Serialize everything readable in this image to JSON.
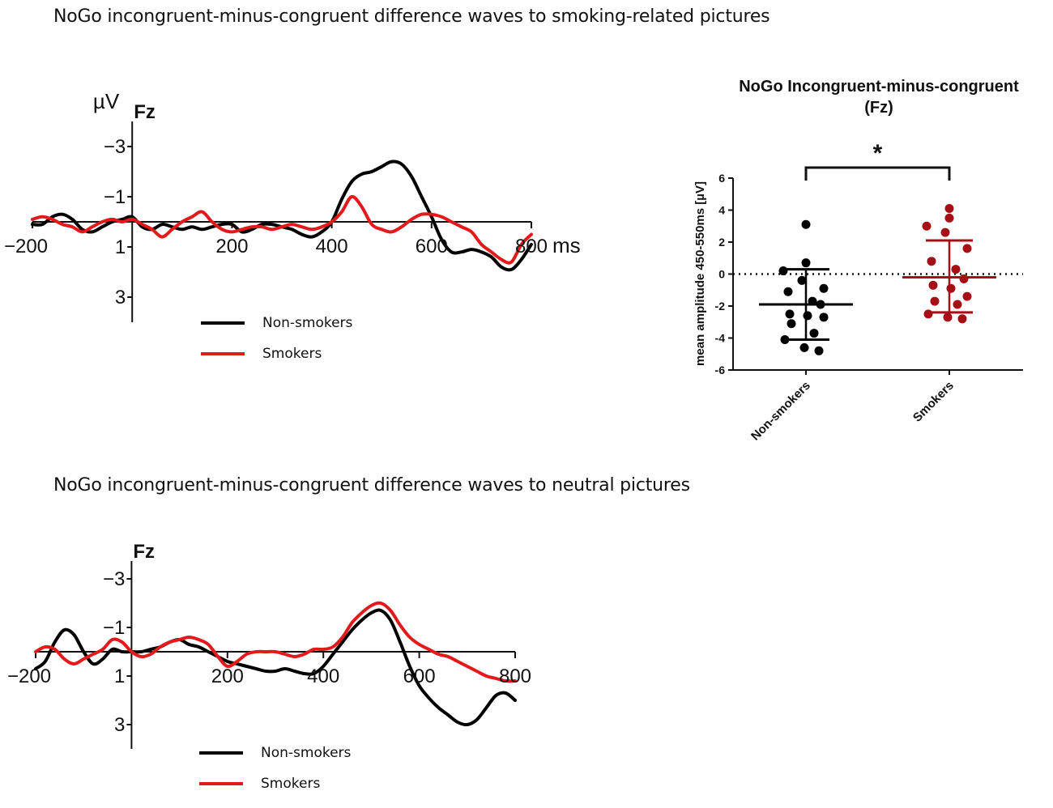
{
  "headings": {
    "top": "NoGo incongruent-minus-congruent difference waves to smoking-related pictures",
    "bottom": "NoGo incongruent-minus-congruent difference waves to neutral pictures"
  },
  "colors": {
    "nonsmokers": "#000000",
    "smokers": "#e31a1c",
    "smokers_scatter": "#a50f15"
  },
  "chart_data": [
    {
      "type": "line",
      "title": "Fz",
      "ylabel": "µV",
      "xlabel": "ms",
      "xlim": [
        -200,
        800
      ],
      "ylim": [
        -4,
        4
      ],
      "y_inverted": true,
      "x_ticks": [
        "−200",
        "200",
        "400",
        "600",
        "800"
      ],
      "y_ticks": [
        "−3",
        "−1",
        "1",
        "3"
      ],
      "legend": [
        "Non-smokers",
        "Smokers"
      ],
      "series": [
        {
          "name": "Non-smokers",
          "x": [
            -200,
            -180,
            -160,
            -140,
            -120,
            -100,
            -80,
            -60,
            -40,
            -20,
            0,
            20,
            40,
            60,
            80,
            100,
            120,
            140,
            160,
            180,
            200,
            220,
            240,
            260,
            280,
            300,
            320,
            340,
            360,
            380,
            400,
            420,
            440,
            460,
            480,
            500,
            520,
            540,
            560,
            580,
            600,
            620,
            640,
            660,
            680,
            700,
            720,
            740,
            760,
            780,
            800
          ],
          "y": [
            0.1,
            0.1,
            -0.2,
            -0.3,
            -0.1,
            0.3,
            0.4,
            0.2,
            0,
            -0.1,
            -0.2,
            0.2,
            0.3,
            0.1,
            0.2,
            0.3,
            0.2,
            0.3,
            0.2,
            0.1,
            0.1,
            0.4,
            0.3,
            0.1,
            0.1,
            0.2,
            0.3,
            0.5,
            0.6,
            0.4,
            0,
            -0.9,
            -1.6,
            -1.9,
            -2,
            -2.2,
            -2.4,
            -2.3,
            -1.8,
            -1,
            -0.2,
            0.7,
            1.2,
            1.2,
            1.1,
            1.2,
            1.4,
            1.8,
            1.9,
            1.5,
            0.9
          ]
        },
        {
          "name": "Smokers",
          "x": [
            -200,
            -180,
            -160,
            -140,
            -120,
            -100,
            -80,
            -60,
            -40,
            -20,
            0,
            20,
            40,
            60,
            80,
            100,
            120,
            140,
            160,
            180,
            200,
            220,
            240,
            260,
            280,
            300,
            320,
            340,
            360,
            380,
            400,
            420,
            440,
            460,
            480,
            500,
            520,
            540,
            560,
            580,
            600,
            620,
            640,
            660,
            680,
            700,
            720,
            740,
            760,
            780,
            800
          ],
          "y": [
            -0.1,
            -0.2,
            -0.1,
            0.1,
            0.2,
            0.4,
            0.2,
            0,
            -0.1,
            0,
            -0.1,
            0.1,
            0.3,
            0.6,
            0.3,
            0,
            -0.2,
            -0.4,
            0,
            0.3,
            0.4,
            0.3,
            0.2,
            0.2,
            0.3,
            0.2,
            0.1,
            0.2,
            0.3,
            0.2,
            0,
            -0.4,
            -1,
            -0.6,
            0.1,
            0.3,
            0.4,
            0.2,
            -0.1,
            -0.3,
            -0.3,
            -0.2,
            0,
            0.2,
            0.4,
            0.9,
            1.2,
            1.5,
            1.6,
            0.9,
            0.5
          ]
        }
      ]
    },
    {
      "type": "scatter",
      "title": "NoGo Incongruent-minus-congruent",
      "subtitle": "(Fz)",
      "ylabel": "mean amplitude 450-550ms [µV]",
      "ylim": [
        -6,
        6
      ],
      "y_ticks": [
        6,
        4,
        2,
        0,
        -2,
        -4,
        -6
      ],
      "categories": [
        "Non-smokers",
        "Smokers"
      ],
      "significance": "*",
      "groups": [
        {
          "name": "Non-smokers",
          "mean": -1.9,
          "sd_upper": 0.3,
          "sd_lower": -4.1,
          "points": [
            3.1,
            0.7,
            0.2,
            -0.4,
            -0.9,
            -1.1,
            -1.7,
            -1.9,
            -2.5,
            -2.6,
            -2.7,
            -3.1,
            -3.7,
            -4.1,
            -4.6,
            -4.8
          ]
        },
        {
          "name": "Smokers",
          "mean": -0.2,
          "sd_upper": 2.1,
          "sd_lower": -2.4,
          "points": [
            4.1,
            3.5,
            3.0,
            2.6,
            1.6,
            0.8,
            0.3,
            -0.3,
            -0.7,
            -0.9,
            -1.4,
            -1.7,
            -1.9,
            -2.5,
            -2.7,
            -2.8
          ]
        }
      ]
    },
    {
      "type": "line",
      "title": "Fz",
      "xlim": [
        -200,
        800
      ],
      "ylim": [
        -4,
        4
      ],
      "y_inverted": true,
      "x_ticks": [
        "−200",
        "200",
        "400",
        "600",
        "800"
      ],
      "y_ticks": [
        "−3",
        "−1",
        "1",
        "3"
      ],
      "legend": [
        "Non-smokers",
        "Smokers"
      ],
      "series": [
        {
          "name": "Non-smokers",
          "x": [
            -200,
            -180,
            -160,
            -140,
            -120,
            -100,
            -80,
            -60,
            -40,
            -20,
            0,
            20,
            40,
            60,
            80,
            100,
            120,
            140,
            160,
            180,
            200,
            220,
            240,
            260,
            280,
            300,
            320,
            340,
            360,
            380,
            400,
            420,
            440,
            460,
            480,
            500,
            520,
            540,
            560,
            580,
            600,
            620,
            640,
            660,
            680,
            700,
            720,
            740,
            760,
            780,
            800
          ],
          "y": [
            0.7,
            0.4,
            -0.4,
            -0.9,
            -0.7,
            0,
            0.5,
            0.3,
            -0.1,
            0,
            0,
            0,
            -0.1,
            -0.2,
            -0.4,
            -0.5,
            -0.3,
            -0.2,
            0,
            0.2,
            0.4,
            0.5,
            0.6,
            0.7,
            0.8,
            0.8,
            0.7,
            0.8,
            0.9,
            0.9,
            0.6,
            0.1,
            -0.4,
            -0.9,
            -1.3,
            -1.6,
            -1.7,
            -1.3,
            -0.4,
            0.6,
            1.4,
            1.9,
            2.3,
            2.6,
            2.9,
            3,
            2.8,
            2.3,
            1.8,
            1.7,
            2
          ]
        },
        {
          "name": "Smokers",
          "x": [
            -200,
            -180,
            -160,
            -140,
            -120,
            -100,
            -80,
            -60,
            -40,
            -20,
            0,
            20,
            40,
            60,
            80,
            100,
            120,
            140,
            160,
            180,
            200,
            220,
            240,
            260,
            280,
            300,
            320,
            340,
            360,
            380,
            400,
            420,
            440,
            460,
            480,
            500,
            520,
            540,
            560,
            580,
            600,
            620,
            640,
            660,
            680,
            700,
            720,
            740,
            760,
            780,
            800
          ],
          "y": [
            0,
            -0.2,
            -0.1,
            0.3,
            0.5,
            0.3,
            0.1,
            -0.1,
            -0.5,
            -0.4,
            0,
            0.2,
            0.1,
            -0.2,
            -0.4,
            -0.5,
            -0.6,
            -0.5,
            -0.3,
            0.2,
            0.6,
            0.4,
            0.1,
            0,
            0,
            0,
            0.1,
            0.2,
            0.1,
            -0.1,
            -0.1,
            -0.2,
            -0.6,
            -1.2,
            -1.6,
            -1.9,
            -2,
            -1.7,
            -1.1,
            -0.6,
            -0.3,
            -0.1,
            0.1,
            0.2,
            0.4,
            0.6,
            0.8,
            1,
            1.1,
            1.2,
            1.2
          ]
        }
      ]
    }
  ]
}
